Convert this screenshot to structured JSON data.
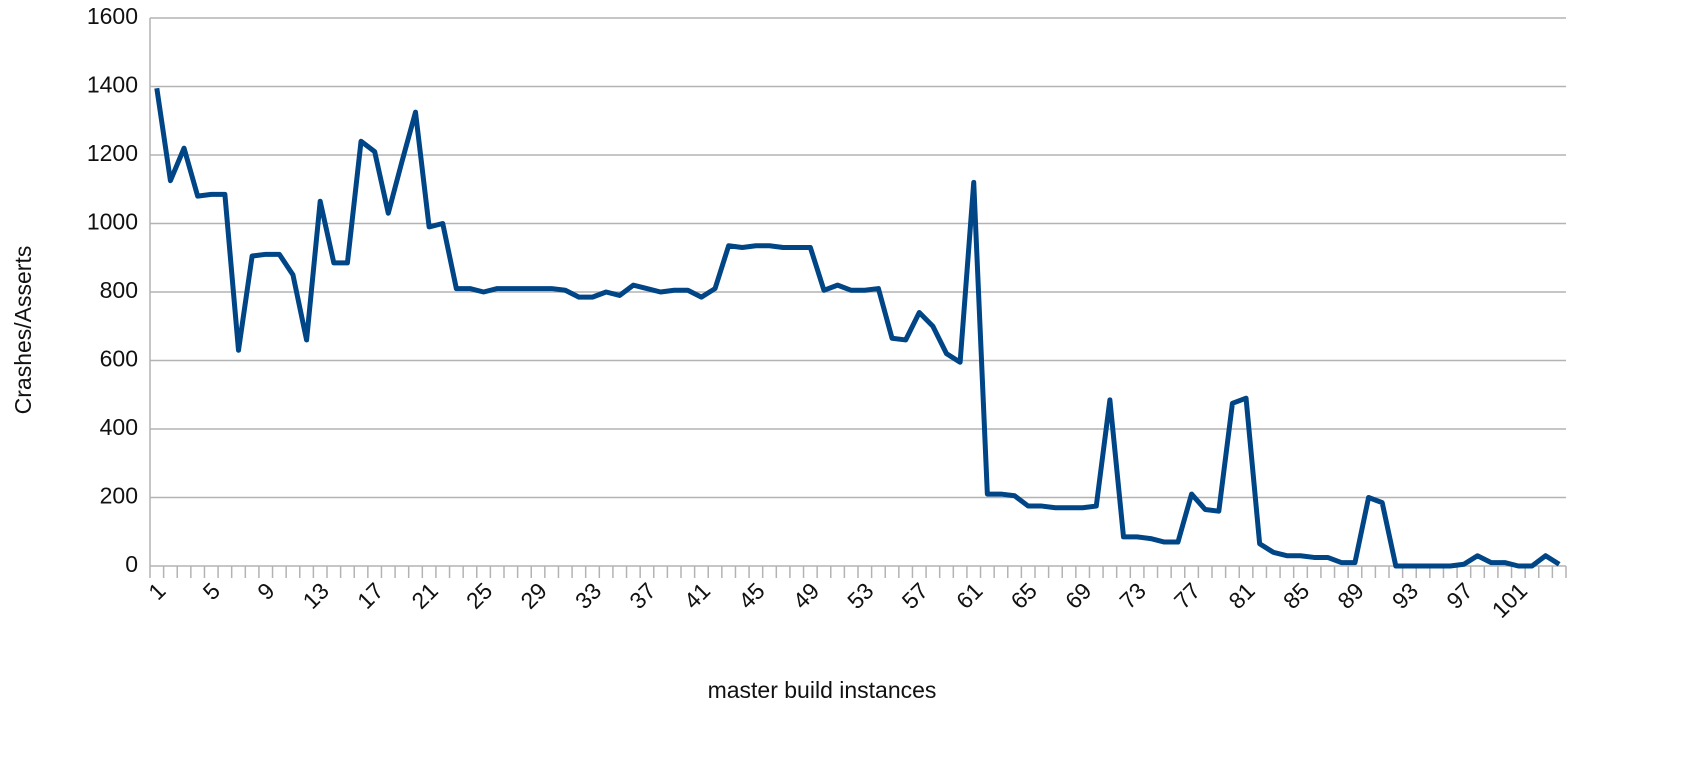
{
  "chart_data": {
    "type": "line",
    "y_label": "Crashes/Asserts",
    "x_label": "master build instances",
    "categories": [
      "1",
      null,
      null,
      null,
      "5",
      null,
      null,
      null,
      "9",
      null,
      null,
      null,
      "13",
      null,
      null,
      null,
      "17",
      null,
      null,
      null,
      "21",
      null,
      null,
      null,
      "25",
      null,
      null,
      null,
      "29",
      null,
      null,
      null,
      "33",
      null,
      null,
      null,
      "37",
      null,
      null,
      null,
      "41",
      null,
      null,
      null,
      "45",
      null,
      null,
      null,
      "49",
      null,
      null,
      null,
      "53",
      null,
      null,
      null,
      "57",
      null,
      null,
      null,
      "61",
      null,
      null,
      null,
      "65",
      null,
      null,
      null,
      "69",
      null,
      null,
      null,
      "73",
      null,
      null,
      null,
      "77",
      null,
      null,
      null,
      "81",
      null,
      null,
      null,
      "85",
      null,
      null,
      null,
      "89",
      null,
      null,
      null,
      "93",
      null,
      null,
      null,
      "97",
      null,
      null,
      null,
      "101",
      null,
      null,
      null
    ],
    "values": [
      1395,
      1125,
      1220,
      1080,
      1085,
      1085,
      630,
      905,
      910,
      910,
      850,
      660,
      1065,
      885,
      885,
      1240,
      1210,
      1030,
      1180,
      1325,
      990,
      1000,
      810,
      810,
      800,
      810,
      810,
      810,
      810,
      810,
      805,
      785,
      785,
      800,
      790,
      820,
      810,
      800,
      805,
      805,
      785,
      810,
      935,
      930,
      935,
      935,
      930,
      930,
      930,
      805,
      820,
      805,
      805,
      810,
      665,
      660,
      740,
      700,
      620,
      595,
      1120,
      210,
      210,
      205,
      175,
      175,
      170,
      170,
      170,
      175,
      485,
      85,
      85,
      80,
      70,
      70,
      210,
      165,
      160,
      475,
      490,
      65,
      40,
      30,
      30,
      25,
      25,
      10,
      10,
      200,
      185,
      0,
      0,
      0,
      0,
      0,
      5,
      30,
      10,
      10,
      0,
      0,
      30,
      5
    ],
    "color": "#004586",
    "ylim": [
      0,
      1600
    ],
    "yticks": [
      0,
      200,
      400,
      600,
      800,
      1000,
      1200,
      1400,
      1600
    ],
    "grid": true
  }
}
